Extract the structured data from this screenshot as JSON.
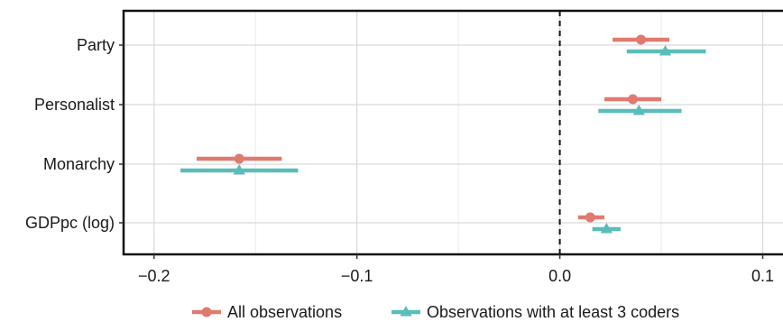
{
  "chart_data": {
    "type": "scatter",
    "subtype": "coefficient-plot",
    "categories": [
      "Party",
      "Personalist",
      "Monarchy",
      "GDPpc (log)"
    ],
    "series": [
      {
        "name": "All observations",
        "marker": "circle",
        "color": "#E07A6F",
        "points": [
          {
            "category": "Party",
            "estimate": 0.04,
            "lower": 0.026,
            "upper": 0.054
          },
          {
            "category": "Personalist",
            "estimate": 0.036,
            "lower": 0.022,
            "upper": 0.05
          },
          {
            "category": "Monarchy",
            "estimate": -0.158,
            "lower": -0.179,
            "upper": -0.137
          },
          {
            "category": "GDPpc (log)",
            "estimate": 0.015,
            "lower": 0.009,
            "upper": 0.022
          }
        ]
      },
      {
        "name": "Observations with at least 3 coders",
        "marker": "triangle",
        "color": "#5BBDB9",
        "points": [
          {
            "category": "Party",
            "estimate": 0.052,
            "lower": 0.033,
            "upper": 0.072
          },
          {
            "category": "Personalist",
            "estimate": 0.039,
            "lower": 0.019,
            "upper": 0.06
          },
          {
            "category": "Monarchy",
            "estimate": -0.158,
            "lower": -0.187,
            "upper": -0.129
          },
          {
            "category": "GDPpc (log)",
            "estimate": 0.023,
            "lower": 0.016,
            "upper": 0.03
          }
        ]
      }
    ],
    "x_ticks": [
      -0.2,
      -0.1,
      0.0,
      0.1
    ],
    "x_tick_labels": [
      "−0.2",
      "−0.1",
      "0.0",
      "0.1"
    ],
    "xlim": [
      -0.215,
      0.11
    ],
    "reference_line": 0,
    "grid": true,
    "legend_position": "bottom",
    "xlabel": "",
    "ylabel": "",
    "title": ""
  }
}
